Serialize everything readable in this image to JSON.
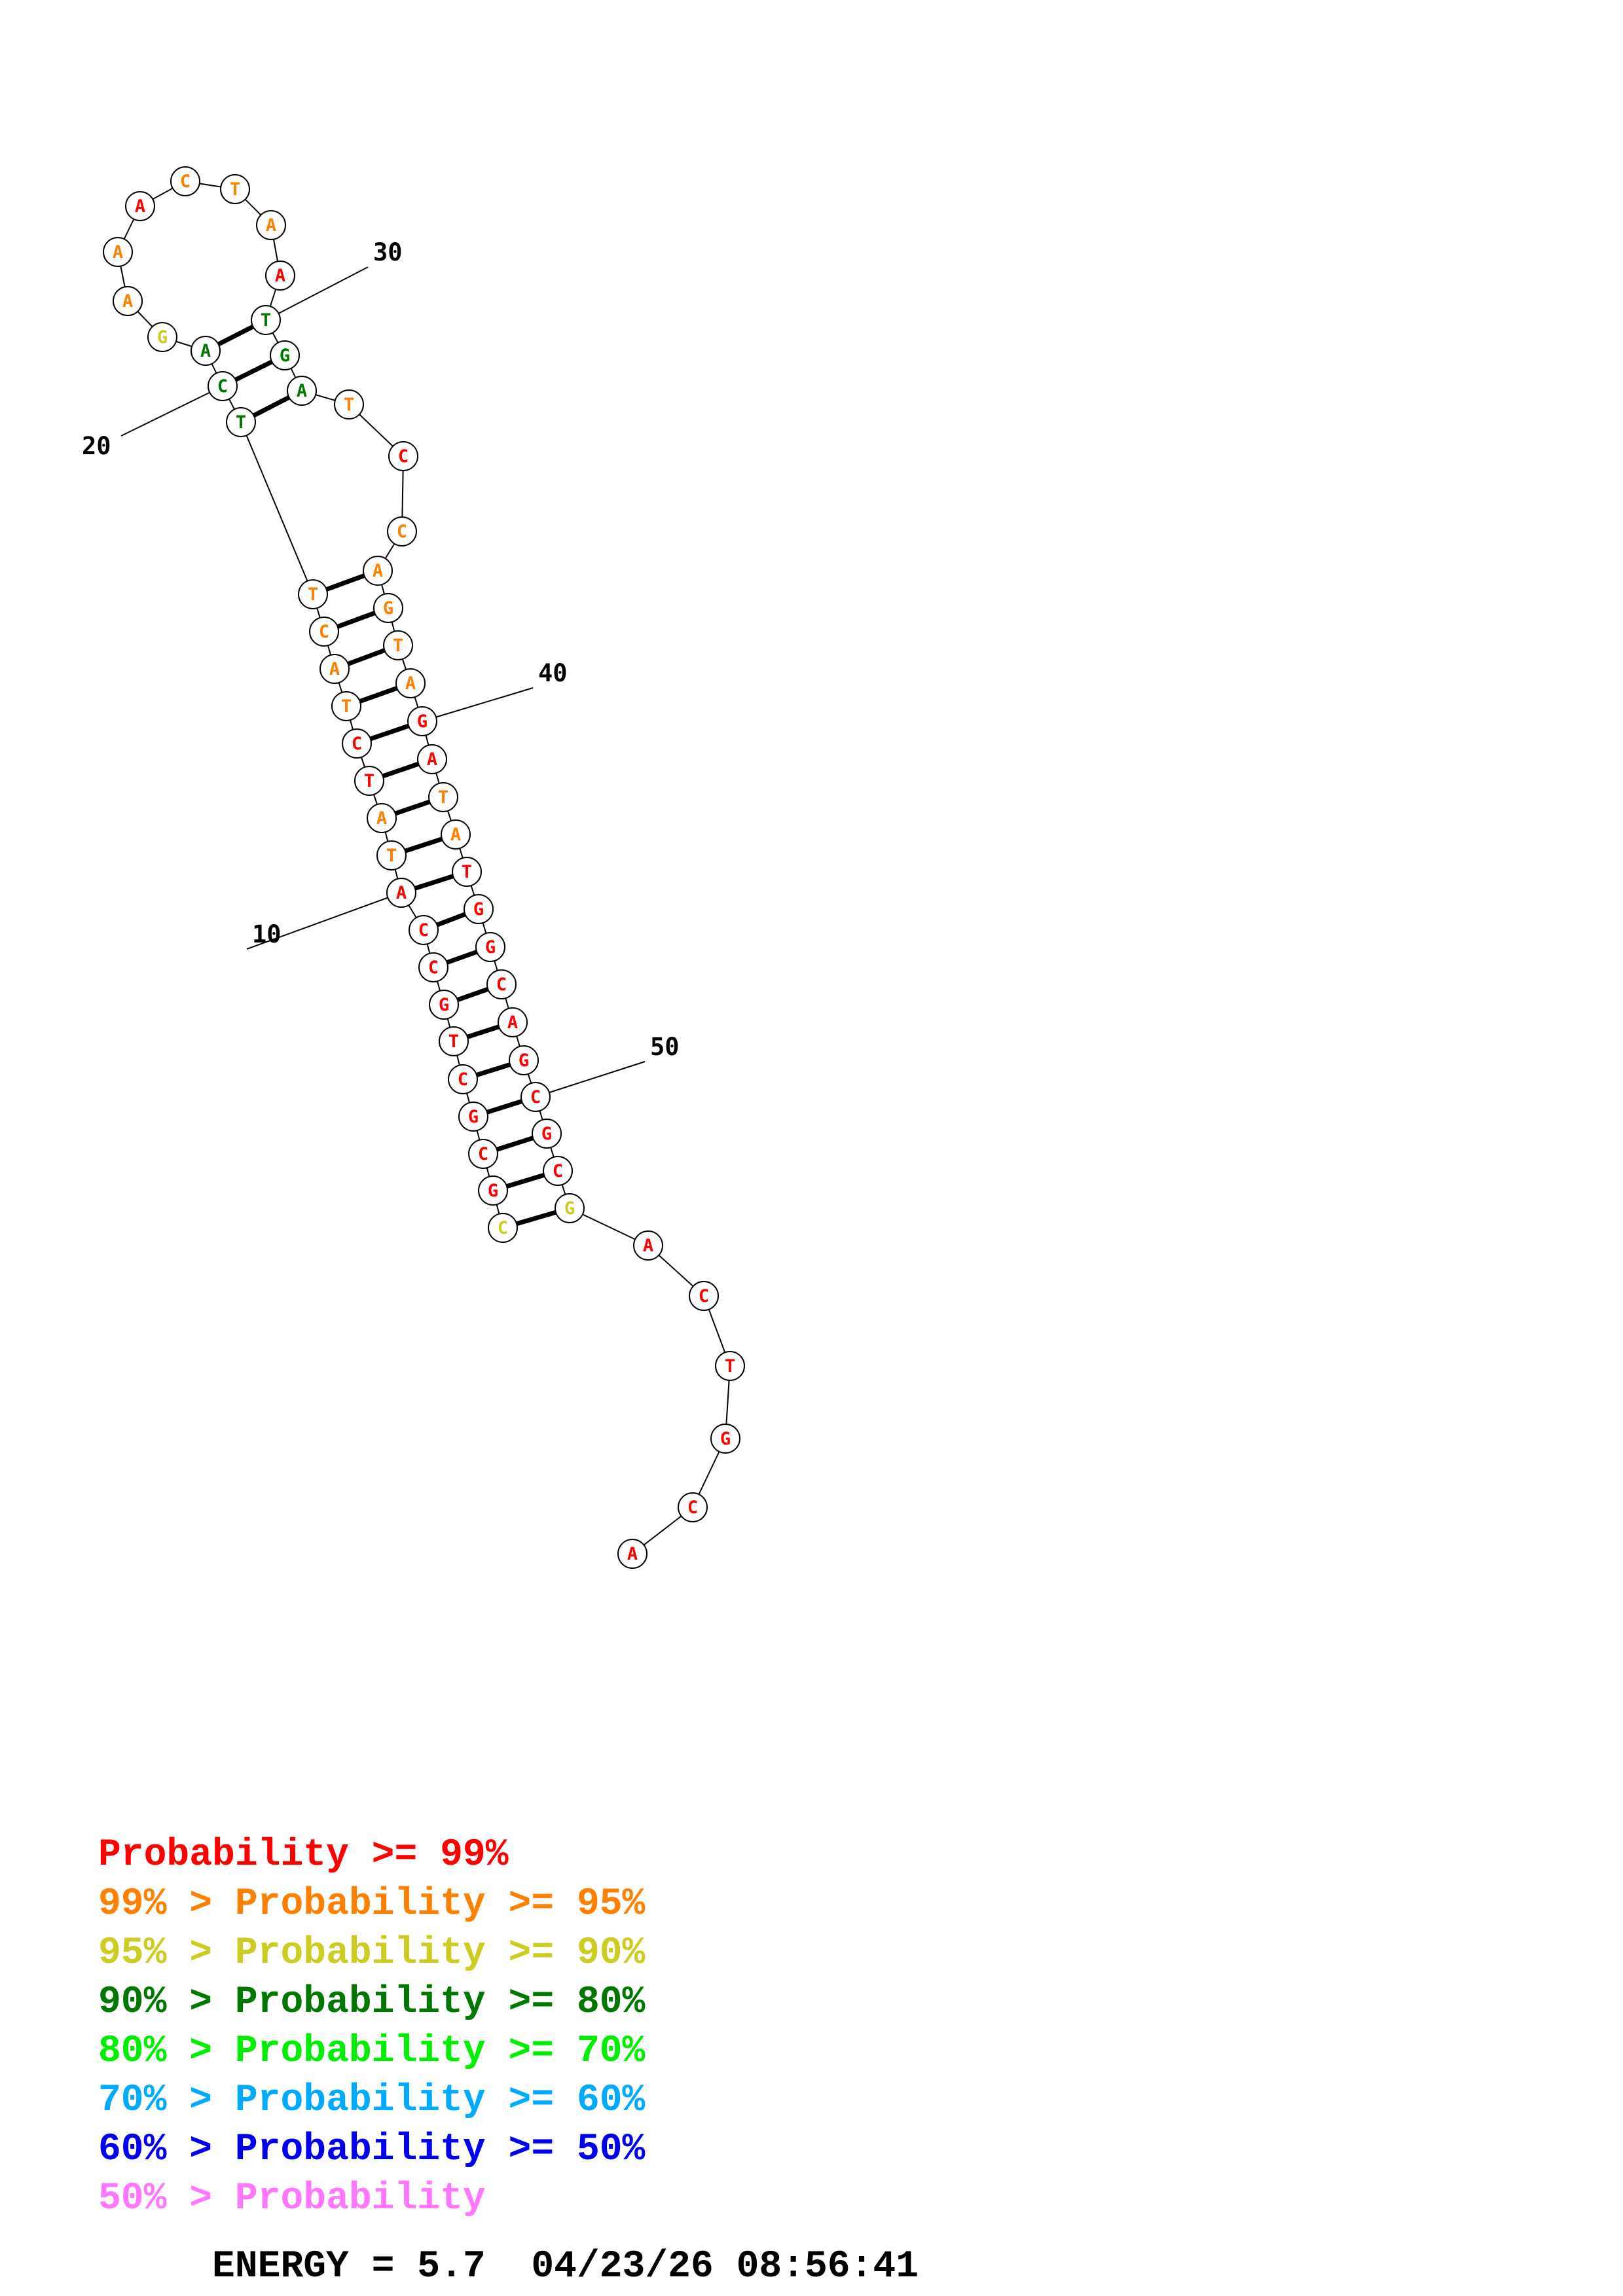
{
  "colors": {
    "p99": "#ff0000",
    "p95": "#ff8000",
    "p90": "#cccc22",
    "p80": "#007700",
    "p70": "#00ee00",
    "p60": "#00aaff",
    "p50": "#0000ee",
    "plow": "#ff77ff",
    "black": "#000000"
  },
  "nucleotides": [
    {
      "i": 1,
      "base": "C",
      "level": "p90"
    },
    {
      "i": 2,
      "base": "G",
      "level": "p99"
    },
    {
      "i": 3,
      "base": "C",
      "level": "p99"
    },
    {
      "i": 4,
      "base": "G",
      "level": "p99"
    },
    {
      "i": 5,
      "base": "C",
      "level": "p99"
    },
    {
      "i": 6,
      "base": "T",
      "level": "p99"
    },
    {
      "i": 7,
      "base": "G",
      "level": "p99"
    },
    {
      "i": 8,
      "base": "C",
      "level": "p99"
    },
    {
      "i": 9,
      "base": "C",
      "level": "p99"
    },
    {
      "i": 10,
      "base": "A",
      "level": "p99"
    },
    {
      "i": 11,
      "base": "T",
      "level": "p95"
    },
    {
      "i": 12,
      "base": "A",
      "level": "p95"
    },
    {
      "i": 13,
      "base": "T",
      "level": "p99"
    },
    {
      "i": 14,
      "base": "C",
      "level": "p99"
    },
    {
      "i": 15,
      "base": "T",
      "level": "p95"
    },
    {
      "i": 16,
      "base": "A",
      "level": "p95"
    },
    {
      "i": 17,
      "base": "C",
      "level": "p95"
    },
    {
      "i": 18,
      "base": "T",
      "level": "p95"
    },
    {
      "i": 19,
      "base": "T",
      "level": "p80"
    },
    {
      "i": 20,
      "base": "C",
      "level": "p80"
    },
    {
      "i": 21,
      "base": "A",
      "level": "p80"
    },
    {
      "i": 22,
      "base": "G",
      "level": "p90"
    },
    {
      "i": 23,
      "base": "A",
      "level": "p95"
    },
    {
      "i": 24,
      "base": "A",
      "level": "p95"
    },
    {
      "i": 25,
      "base": "A",
      "level": "p99"
    },
    {
      "i": 26,
      "base": "C",
      "level": "p95"
    },
    {
      "i": 27,
      "base": "T",
      "level": "p95"
    },
    {
      "i": 28,
      "base": "A",
      "level": "p95"
    },
    {
      "i": 29,
      "base": "A",
      "level": "p99"
    },
    {
      "i": 30,
      "base": "T",
      "level": "p80"
    },
    {
      "i": 31,
      "base": "G",
      "level": "p80"
    },
    {
      "i": 32,
      "base": "A",
      "level": "p80"
    },
    {
      "i": 33,
      "base": "T",
      "level": "p95"
    },
    {
      "i": 34,
      "base": "C",
      "level": "p99"
    },
    {
      "i": 35,
      "base": "C",
      "level": "p95"
    },
    {
      "i": 36,
      "base": "A",
      "level": "p95"
    },
    {
      "i": 37,
      "base": "G",
      "level": "p95"
    },
    {
      "i": 38,
      "base": "T",
      "level": "p95"
    },
    {
      "i": 39,
      "base": "A",
      "level": "p95"
    },
    {
      "i": 40,
      "base": "G",
      "level": "p99"
    },
    {
      "i": 41,
      "base": "A",
      "level": "p99"
    },
    {
      "i": 42,
      "base": "T",
      "level": "p95"
    },
    {
      "i": 43,
      "base": "A",
      "level": "p95"
    },
    {
      "i": 44,
      "base": "T",
      "level": "p99"
    },
    {
      "i": 45,
      "base": "G",
      "level": "p99"
    },
    {
      "i": 46,
      "base": "G",
      "level": "p99"
    },
    {
      "i": 47,
      "base": "C",
      "level": "p99"
    },
    {
      "i": 48,
      "base": "A",
      "level": "p99"
    },
    {
      "i": 49,
      "base": "G",
      "level": "p99"
    },
    {
      "i": 50,
      "base": "C",
      "level": "p99"
    },
    {
      "i": 51,
      "base": "G",
      "level": "p99"
    },
    {
      "i": 52,
      "base": "C",
      "level": "p99"
    },
    {
      "i": 53,
      "base": "G",
      "level": "p90"
    },
    {
      "i": 54,
      "base": "A",
      "level": "p99"
    },
    {
      "i": 55,
      "base": "C",
      "level": "p99"
    },
    {
      "i": 56,
      "base": "T",
      "level": "p99"
    },
    {
      "i": 57,
      "base": "G",
      "level": "p99"
    },
    {
      "i": 58,
      "base": "C",
      "level": "p99"
    },
    {
      "i": 59,
      "base": "A",
      "level": "p99"
    }
  ],
  "pairs": [
    [
      1,
      53
    ],
    [
      2,
      52
    ],
    [
      3,
      51
    ],
    [
      4,
      50
    ],
    [
      5,
      49
    ],
    [
      6,
      48
    ],
    [
      7,
      47
    ],
    [
      8,
      46
    ],
    [
      9,
      45
    ],
    [
      10,
      44
    ],
    [
      11,
      43
    ],
    [
      12,
      42
    ],
    [
      13,
      41
    ],
    [
      14,
      40
    ],
    [
      15,
      39
    ],
    [
      16,
      38
    ],
    [
      17,
      37
    ],
    [
      18,
      36
    ],
    [
      19,
      32
    ],
    [
      20,
      31
    ],
    [
      21,
      30
    ]
  ],
  "position_labels": [
    {
      "text": "10",
      "at": 10
    },
    {
      "text": "20",
      "at": 20
    },
    {
      "text": "30",
      "at": 30
    },
    {
      "text": "40",
      "at": 40
    },
    {
      "text": "50",
      "at": 50
    }
  ],
  "legend": [
    {
      "prefix": "",
      "mid": "Probability",
      "suffix": " >= 99%",
      "level": "p99"
    },
    {
      "prefix": "99% > ",
      "mid": "Probability",
      "suffix": " >= 95%",
      "level": "p95"
    },
    {
      "prefix": "95% > ",
      "mid": "Probability",
      "suffix": " >= 90%",
      "level": "p90"
    },
    {
      "prefix": "90% > ",
      "mid": "Probability",
      "suffix": " >= 80%",
      "level": "p80"
    },
    {
      "prefix": "80% > ",
      "mid": "Probability",
      "suffix": " >= 70%",
      "level": "p70"
    },
    {
      "prefix": "70% > ",
      "mid": "Probability",
      "suffix": " >= 60%",
      "level": "p60"
    },
    {
      "prefix": "60% > ",
      "mid": "Probability",
      "suffix": " >= 50%",
      "level": "p50"
    },
    {
      "prefix": "50% > ",
      "mid": "Probability",
      "suffix": "",
      "level": "plow"
    }
  ],
  "footer": {
    "energy": "ENERGY = 5.7",
    "timestamp": "04/23/26 08:56:41"
  }
}
